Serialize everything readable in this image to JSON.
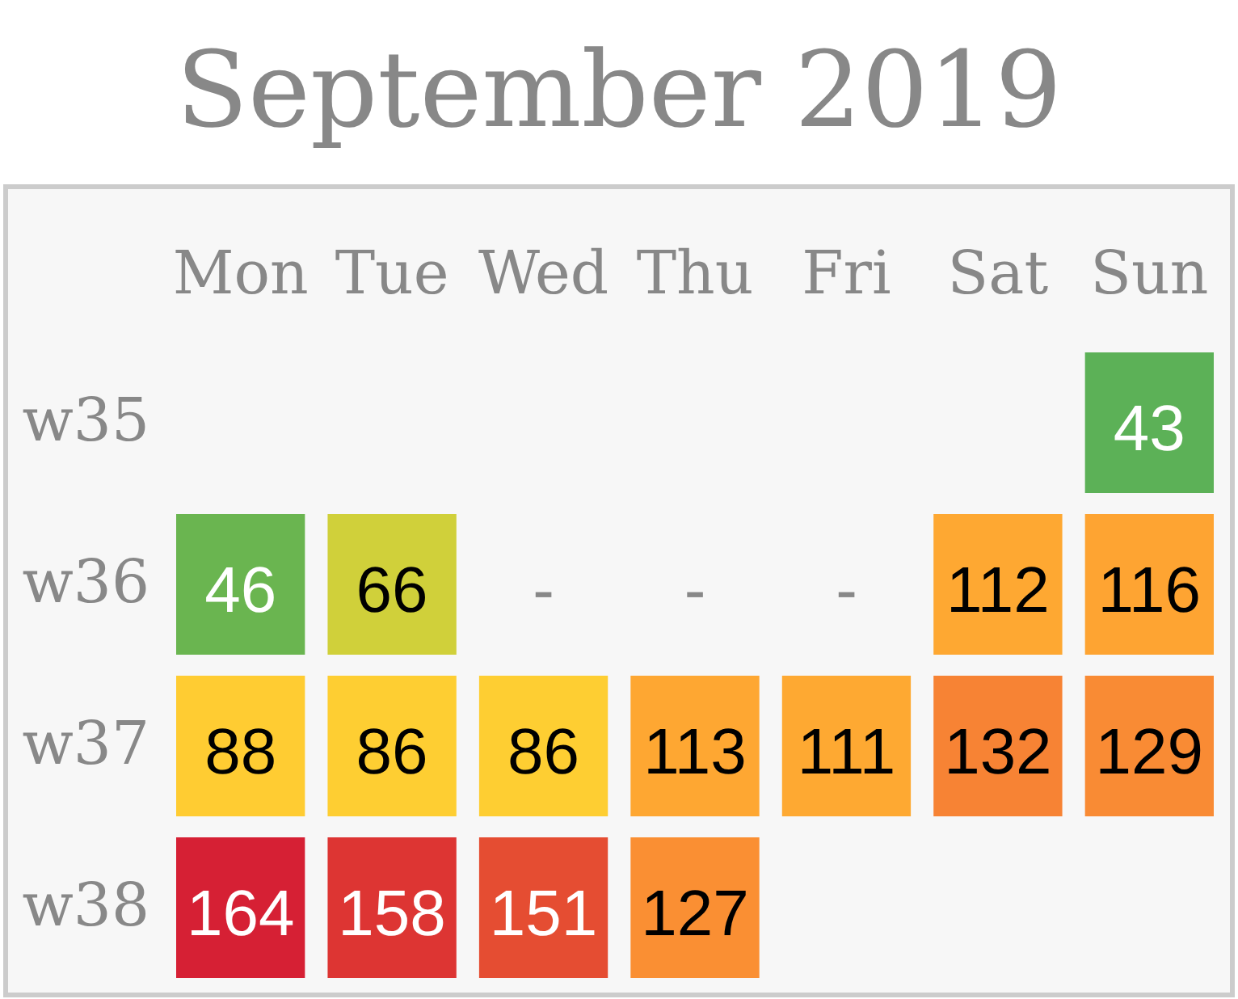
{
  "chart_data": {
    "type": "heatmap",
    "title": "September 2019",
    "categories": [
      "Mon",
      "Tue",
      "Wed",
      "Thu",
      "Fri",
      "Sat",
      "Sun"
    ],
    "y_categories": [
      "w35",
      "w36",
      "w37",
      "w38"
    ],
    "cells": [
      [
        null,
        null,
        null,
        null,
        null,
        null,
        43
      ],
      [
        46,
        66,
        null,
        null,
        null,
        112,
        116
      ],
      [
        88,
        86,
        86,
        113,
        111,
        132,
        129
      ],
      [
        164,
        158,
        151,
        127,
        null,
        null,
        null
      ]
    ],
    "cell_labels": [
      [
        null,
        null,
        null,
        null,
        null,
        null,
        "43"
      ],
      [
        "46",
        "66",
        "-",
        "-",
        "-",
        "112",
        "116"
      ],
      [
        "88",
        "86",
        "86",
        "113",
        "111",
        "132",
        "129"
      ],
      [
        "164",
        "158",
        "151",
        "127",
        null,
        null,
        null
      ]
    ],
    "colors": [
      "#5cb157",
      "#8fc03d",
      "#cdd03b",
      "#efd035",
      "#ffce32",
      "#ffbc32",
      "#feab32",
      "#fea032",
      "#f88634",
      "#ed6733",
      "#e34732",
      "#d62034"
    ]
  }
}
